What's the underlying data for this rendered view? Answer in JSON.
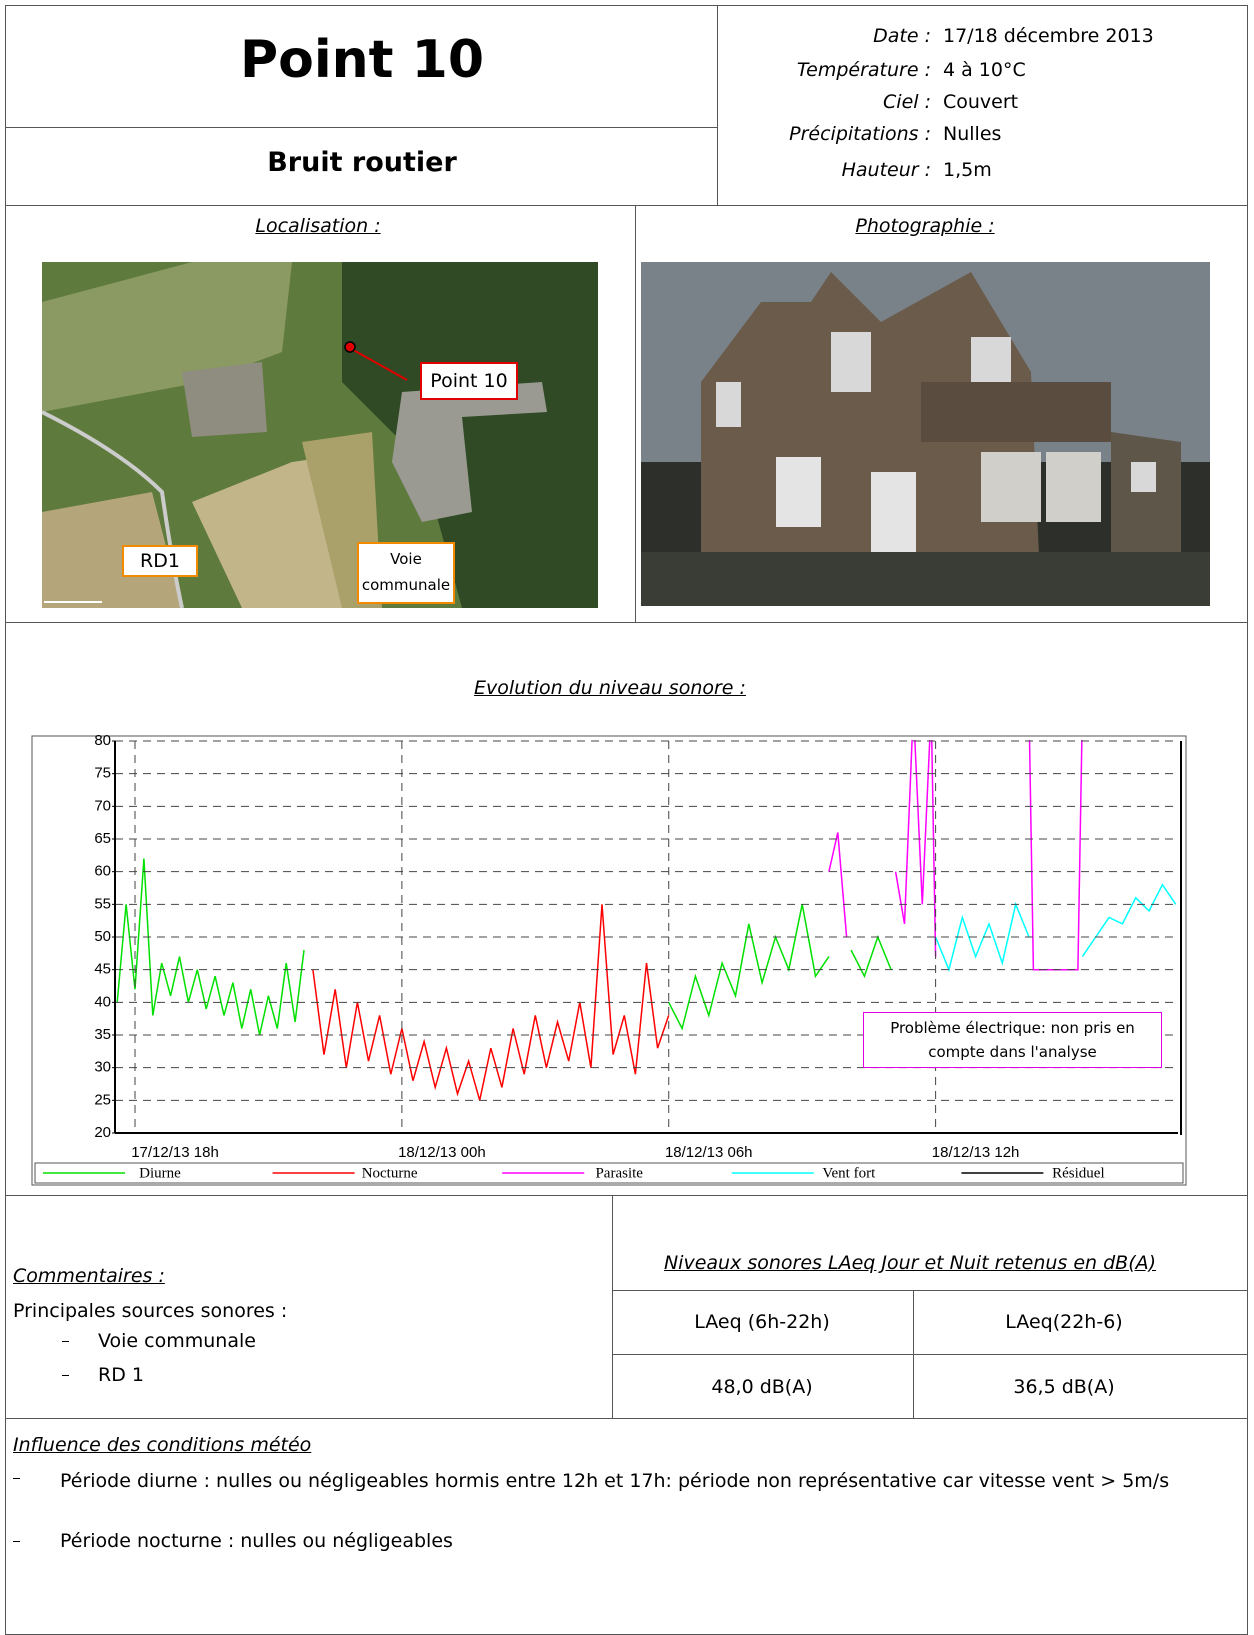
{
  "header": {
    "title": "Point 10",
    "subtitle": "Bruit routier"
  },
  "conditions": [
    {
      "label": "Date :",
      "value": "17/18 décembre 2013"
    },
    {
      "label": "Température :",
      "value": "4 à 10°C"
    },
    {
      "label": "Ciel :",
      "value": "Couvert"
    },
    {
      "label": "Précipitations :",
      "value": "Nulles"
    },
    {
      "label": "Hauteur :",
      "value": "1,5m"
    }
  ],
  "localisation": {
    "title": "Localisation :",
    "labels": [
      "Point 10",
      "RD1",
      "Voie communale"
    ]
  },
  "photo": {
    "title": "Photographie :"
  },
  "evolution_title": "Evolution du niveau sonore :",
  "chart_data": {
    "type": "line",
    "xlim": [
      17.55,
      41.45
    ],
    "xticks": [
      {
        "value": 18,
        "label": "17/12/13 18h"
      },
      {
        "value": 24,
        "label": "18/12/13 00h"
      },
      {
        "value": 30,
        "label": "18/12/13 06h"
      },
      {
        "value": 36,
        "label": "18/12/13 12h"
      }
    ],
    "ylim": [
      20,
      80
    ],
    "yticks": [
      20,
      25,
      30,
      35,
      40,
      45,
      50,
      55,
      60,
      65,
      70,
      75,
      80
    ],
    "grid": true,
    "annotation": "Problème électrique: non pris en compte dans l'analyse",
    "series": [
      {
        "name": "Diurne",
        "color": "#00e000",
        "x": [
          17.6,
          17.8,
          18.0,
          18.2,
          18.4,
          18.6,
          18.8,
          19.0,
          19.2,
          19.4,
          19.6,
          19.8,
          20.0,
          20.2,
          20.4,
          20.6,
          20.8,
          21.0,
          21.2,
          21.4,
          21.6,
          21.8,
          null,
          30.0,
          30.3,
          30.6,
          30.9,
          31.2,
          31.5,
          31.8,
          32.1,
          32.4,
          32.7,
          33.0,
          33.3,
          33.6,
          null,
          34.1,
          34.4,
          34.7,
          35.0
        ],
        "values": [
          40,
          55,
          42,
          62,
          38,
          46,
          41,
          47,
          40,
          45,
          39,
          44,
          38,
          43,
          36,
          42,
          35,
          41,
          36,
          46,
          37,
          48,
          null,
          40,
          36,
          44,
          38,
          46,
          41,
          52,
          43,
          50,
          45,
          55,
          44,
          47,
          null,
          48,
          44,
          50,
          45
        ]
      },
      {
        "name": "Nocturne",
        "color": "#ff0000",
        "x": [
          22.0,
          22.25,
          22.5,
          22.75,
          23.0,
          23.25,
          23.5,
          23.75,
          24.0,
          24.25,
          24.5,
          24.75,
          25.0,
          25.25,
          25.5,
          25.75,
          26.0,
          26.25,
          26.5,
          26.75,
          27.0,
          27.25,
          27.5,
          27.75,
          28.0,
          28.25,
          28.5,
          28.75,
          29.0,
          29.25,
          29.5,
          29.75,
          30.0
        ],
        "values": [
          45,
          32,
          42,
          30,
          40,
          31,
          38,
          29,
          36,
          28,
          34,
          27,
          33,
          26,
          31,
          25,
          33,
          27,
          36,
          29,
          38,
          30,
          37,
          31,
          40,
          30,
          55,
          32,
          38,
          29,
          46,
          33,
          38
        ]
      },
      {
        "name": "Parasite",
        "color": "#ff00ff",
        "x": [
          33.6,
          33.8,
          34.0,
          null,
          35.1,
          35.3,
          35.5,
          35.7,
          35.9,
          36.0,
          null,
          38.1,
          38.2,
          39.2,
          39.3
        ],
        "values": [
          60,
          66,
          50,
          null,
          60,
          52,
          85,
          55,
          85,
          47,
          null,
          85,
          45,
          45,
          85
        ]
      },
      {
        "name": "Vent fort",
        "color": "#00ffff",
        "x": [
          36.0,
          36.3,
          36.6,
          36.9,
          37.2,
          37.5,
          37.8,
          38.1,
          null,
          39.3,
          39.6,
          39.9,
          40.2,
          40.5,
          40.8,
          41.1,
          41.4
        ],
        "values": [
          50,
          45,
          53,
          47,
          52,
          46,
          55,
          50,
          null,
          47,
          50,
          53,
          52,
          56,
          54,
          58,
          55
        ]
      },
      {
        "name": "Résiduel",
        "color": "#000000",
        "x": [],
        "values": []
      }
    ]
  },
  "comments": {
    "title": "Commentaires :",
    "intro": "Principales sources sonores :",
    "items": [
      "Voie communale",
      "RD 1"
    ]
  },
  "levels": {
    "title": "Niveaux sonores LAeq Jour et Nuit retenus en dB(A)",
    "headers": [
      "LAeq (6h-22h)",
      "LAeq(22h-6)"
    ],
    "values": [
      "48,0 dB(A)",
      "36,5 dB(A)"
    ]
  },
  "meteo": {
    "title": "Influence des conditions météo",
    "items": [
      "Période diurne : nulles ou négligeables hormis entre 12h et 17h: période non représentative car vitesse vent > 5m/s",
      "Période nocturne : nulles ou négligeables"
    ]
  }
}
